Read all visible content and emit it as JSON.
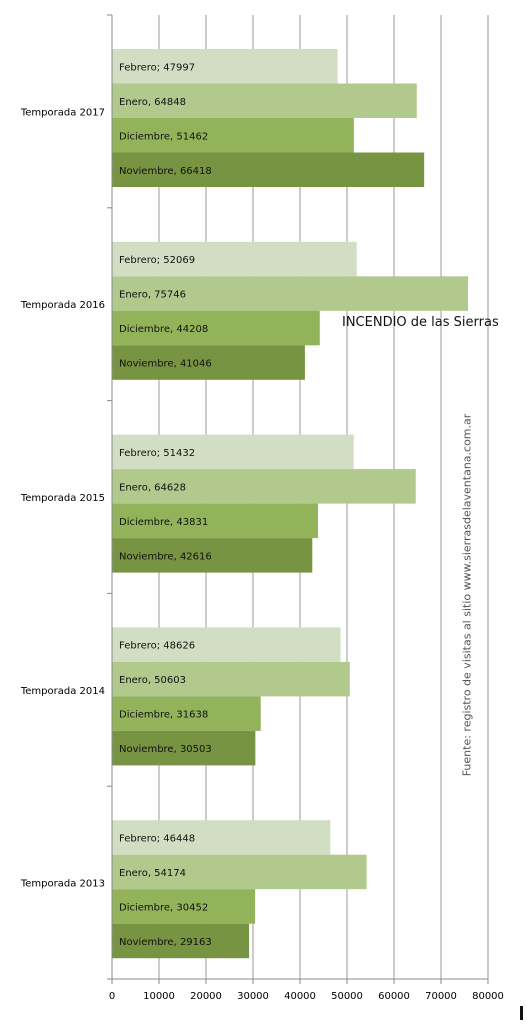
{
  "chart_data": {
    "type": "bar",
    "orientation": "horizontal",
    "categories": [
      "Temporada 2017",
      "Temporada 2016",
      "Temporada 2015",
      "Temporada 2014",
      "Temporada 2013"
    ],
    "series": [
      {
        "name": "Febrero",
        "label_sep": ";",
        "color": "#d2dec3",
        "values": [
          47997,
          52069,
          51432,
          48626,
          46448
        ]
      },
      {
        "name": "Enero",
        "label_sep": ",",
        "color": "#b1c98c",
        "values": [
          64848,
          75746,
          64628,
          50603,
          54174
        ]
      },
      {
        "name": "Diciembre",
        "label_sep": ",",
        "color": "#93b35a",
        "values": [
          51462,
          44208,
          43831,
          31638,
          30452
        ]
      },
      {
        "name": "Noviembre",
        "label_sep": ",",
        "color": "#779442",
        "values": [
          66418,
          41046,
          42616,
          30503,
          29163
        ]
      }
    ],
    "xlim": [
      0,
      80000
    ],
    "xticks": [
      "0",
      "10000",
      "20000",
      "30000",
      "40000",
      "50000",
      "60000",
      "70000",
      "80000"
    ],
    "grid": true,
    "legend": "none"
  },
  "annotation": "INCENDIO de las Sierras",
  "source_note": "Fuente: registro de visitas al sitio www.sierrasdelaventana.com.ar"
}
